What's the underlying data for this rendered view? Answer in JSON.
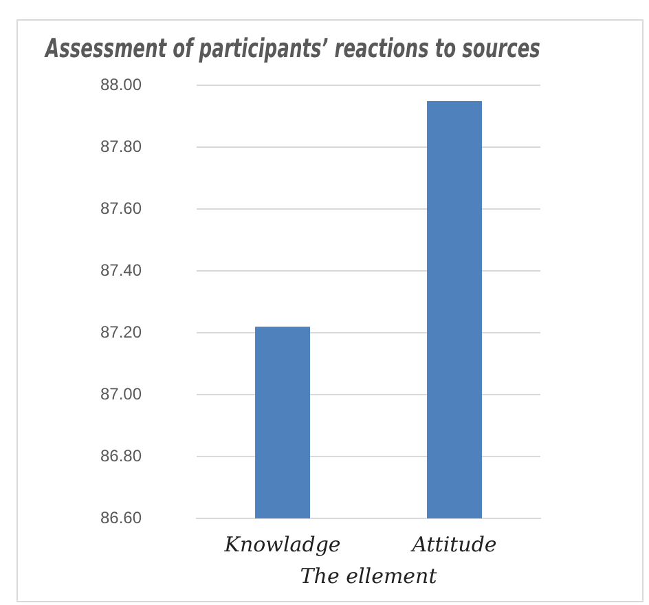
{
  "chart_data": {
    "type": "bar",
    "title": "Assessment of participants’ reactions to sources",
    "xlabel": "The ellement",
    "categories": [
      "Knowladge",
      "Attitude"
    ],
    "values": [
      87.22,
      87.95
    ],
    "color": "#4f81bd",
    "ylim": [
      86.6,
      88.0
    ],
    "yticks": [
      {
        "value": 86.6,
        "label": "86.60"
      },
      {
        "value": 86.8,
        "label": "86.80"
      },
      {
        "value": 87.0,
        "label": "87.00"
      },
      {
        "value": 87.2,
        "label": "87.20"
      },
      {
        "value": 87.4,
        "label": "87.40"
      },
      {
        "value": 87.6,
        "label": "87.60"
      },
      {
        "value": 87.8,
        "label": "87.80"
      },
      {
        "value": 88.0,
        "label": "88.00"
      }
    ],
    "grid": "y",
    "legend": false
  }
}
